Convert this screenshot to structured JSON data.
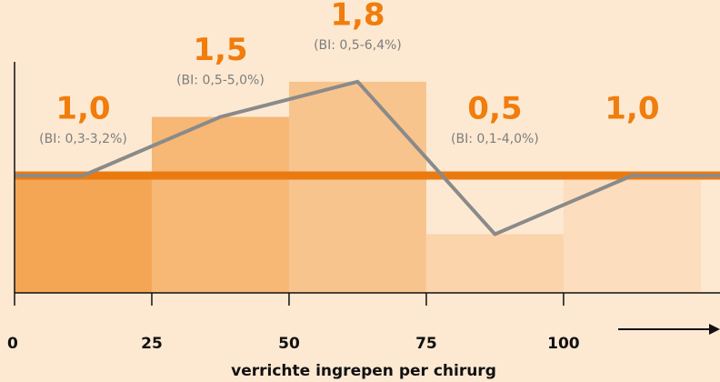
{
  "chart_data": {
    "type": "histogram",
    "bins": [
      0,
      25,
      50,
      75,
      100,
      125
    ],
    "values": [
      1.0,
      1.5,
      1.8,
      0.5,
      1.0
    ],
    "value_labels": [
      "1,0",
      "1,5",
      "1,8",
      "0,5",
      "1,0"
    ],
    "annotations": [
      "(BI: 0,3-3,2%)",
      "(BI: 0,5-5,0%)",
      "(BI: 0,5-6,4%)",
      "(BI: 0,1-4,0%)",
      null
    ],
    "colors": [
      "#f4a654",
      "#f7b775",
      "#f8c48d",
      "#fbd4ab",
      "#fcddbd"
    ],
    "line_color": "#8a8a8a",
    "reference_line": 1,
    "reference_color": "#ea7a10",
    "xlim": [
      0,
      128.5
    ],
    "xticks": [
      0,
      25,
      50,
      75,
      100
    ],
    "ylim": [
      0,
      2
    ],
    "xlabel": "verrichte ingrepen per chirurg"
  }
}
